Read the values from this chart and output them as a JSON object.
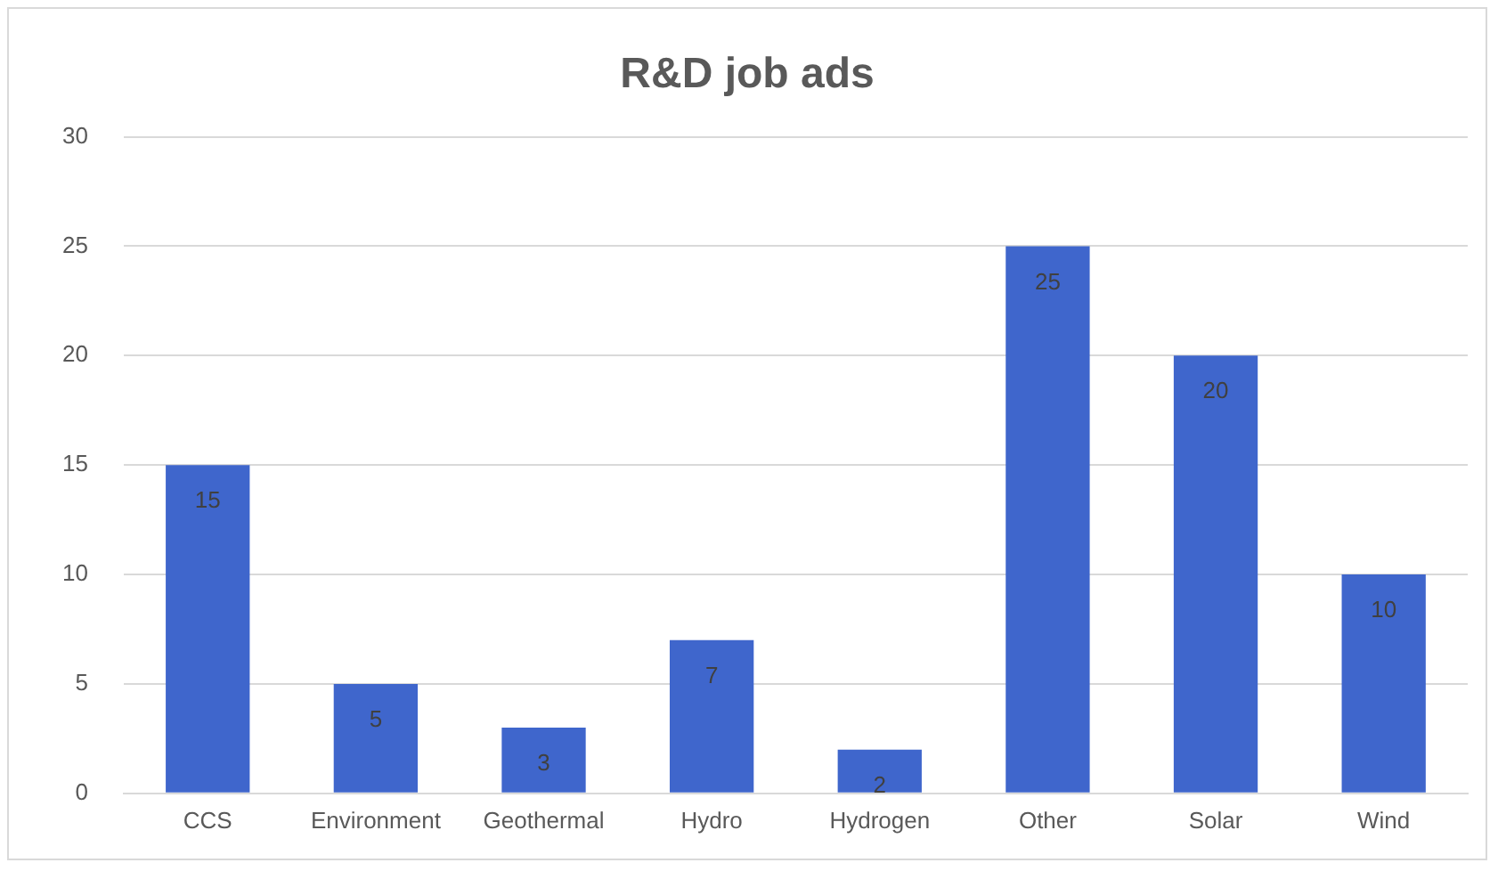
{
  "chart_data": {
    "type": "bar",
    "title": "R&D job ads",
    "categories": [
      "CCS",
      "Environment",
      "Geothermal",
      "Hydro",
      "Hydrogen",
      "Other",
      "Solar",
      "Wind"
    ],
    "values": [
      15,
      5,
      3,
      7,
      2,
      25,
      20,
      10
    ],
    "color": "#3f66cc",
    "ylim": [
      0,
      30
    ],
    "yticks": [
      0,
      5,
      10,
      15,
      20,
      25,
      30
    ],
    "grid": "y",
    "data_labels": true
  }
}
